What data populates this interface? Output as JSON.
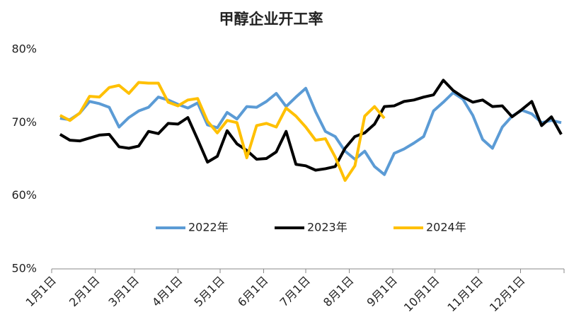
{
  "chart_data": {
    "type": "line",
    "title": "甲醇企业开工率",
    "xlim": [
      0,
      365
    ],
    "xticks": [
      {
        "value": 0,
        "label": "1月1日"
      },
      {
        "value": 31,
        "label": "2月1日"
      },
      {
        "value": 59,
        "label": "3月1日"
      },
      {
        "value": 90,
        "label": "4月1日"
      },
      {
        "value": 120,
        "label": "5月1日"
      },
      {
        "value": 151,
        "label": "6月1日"
      },
      {
        "value": 181,
        "label": "7月1日"
      },
      {
        "value": 212,
        "label": "8月1日"
      },
      {
        "value": 243,
        "label": "9月1日"
      },
      {
        "value": 273,
        "label": "10月1日"
      },
      {
        "value": 304,
        "label": "11月1日"
      },
      {
        "value": 334,
        "label": "12月1日"
      }
    ],
    "ylim": [
      50,
      80
    ],
    "yticks": [
      {
        "value": 50,
        "label": "50%"
      },
      {
        "value": 60,
        "label": "60%"
      },
      {
        "value": 70,
        "label": "70%"
      },
      {
        "value": 80,
        "label": "80%"
      }
    ],
    "grid": false,
    "legend": "bottom",
    "series": [
      {
        "name": "2022年",
        "color": "#5b9bd5",
        "x": [
          6,
          13,
          20,
          27,
          34,
          41,
          48,
          55,
          62,
          69,
          76,
          83,
          90,
          97,
          104,
          111,
          118,
          125,
          132,
          139,
          146,
          153,
          160,
          167,
          174,
          181,
          188,
          195,
          202,
          209,
          216,
          223,
          230,
          237,
          244,
          251,
          258,
          265,
          272,
          279,
          286,
          293,
          300,
          307,
          314,
          321,
          328,
          335,
          342,
          349,
          356,
          363
        ],
        "values": [
          70.6,
          70.4,
          71.3,
          72.9,
          72.6,
          72.1,
          69.4,
          70.7,
          71.6,
          72.1,
          73.5,
          73.1,
          72.5,
          72.0,
          72.7,
          69.7,
          69.3,
          71.4,
          70.5,
          72.2,
          72.1,
          72.9,
          74.0,
          72.2,
          73.5,
          74.7,
          71.5,
          68.8,
          68.1,
          66.1,
          65.0,
          66.1,
          64.0,
          62.9,
          65.8,
          66.4,
          67.2,
          68.1,
          71.6,
          72.8,
          74.1,
          73.2,
          71.0,
          67.7,
          66.5,
          69.4,
          70.9,
          71.7,
          71.2,
          70.0,
          70.3,
          70.0
        ]
      },
      {
        "name": "2023年",
        "color": "#000000",
        "x": [
          6,
          13,
          20,
          27,
          34,
          41,
          48,
          55,
          62,
          69,
          76,
          83,
          90,
          97,
          104,
          111,
          118,
          125,
          132,
          139,
          146,
          153,
          160,
          167,
          174,
          181,
          188,
          195,
          202,
          209,
          216,
          223,
          230,
          237,
          244,
          251,
          258,
          265,
          272,
          279,
          286,
          293,
          300,
          307,
          314,
          321,
          328,
          335,
          342,
          349,
          356,
          363
        ],
        "values": [
          68.4,
          67.6,
          67.5,
          67.9,
          68.3,
          68.4,
          66.7,
          66.5,
          66.8,
          68.8,
          68.5,
          69.9,
          69.8,
          70.7,
          67.7,
          64.6,
          65.4,
          68.9,
          67.1,
          66.2,
          65.0,
          65.1,
          66.0,
          68.8,
          64.3,
          64.1,
          63.5,
          63.7,
          64.0,
          66.5,
          68.1,
          68.6,
          69.8,
          72.2,
          72.3,
          72.9,
          73.1,
          73.5,
          73.8,
          75.8,
          74.4,
          73.5,
          72.8,
          73.1,
          72.2,
          72.3,
          70.8,
          71.8,
          72.9,
          69.6,
          70.8,
          68.4
        ]
      },
      {
        "name": "2024年",
        "color": "#ffc000",
        "x": [
          6,
          13,
          20,
          27,
          34,
          41,
          48,
          55,
          62,
          69,
          76,
          83,
          90,
          97,
          104,
          111,
          118,
          125,
          132,
          139,
          146,
          153,
          160,
          167,
          174,
          181,
          188,
          195,
          202,
          209,
          216,
          223,
          230,
          237
        ],
        "values": [
          71.0,
          70.3,
          71.3,
          73.6,
          73.5,
          74.8,
          75.1,
          74.0,
          75.5,
          75.4,
          75.4,
          72.8,
          72.3,
          73.1,
          73.3,
          70.2,
          68.6,
          70.3,
          70.0,
          65.2,
          69.6,
          69.9,
          69.4,
          72.0,
          70.9,
          69.4,
          67.6,
          67.8,
          65.3,
          62.1,
          64.1,
          70.9,
          72.2,
          70.6
        ]
      }
    ]
  }
}
